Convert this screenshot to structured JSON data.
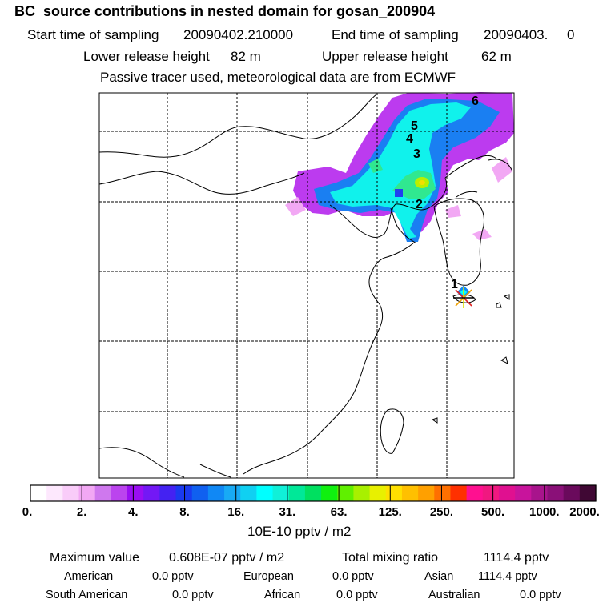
{
  "header": {
    "title": "BC  source contributions in nested domain for gosan_200904",
    "start_label": "Start time of sampling",
    "start_value": "20090402.210000",
    "end_label": "End time of sampling",
    "end_value": "20090403.     0",
    "lower_label": "Lower release height",
    "lower_value": "82 m",
    "upper_label": "Upper release height",
    "upper_value": "62 m",
    "tracer_note": "Passive tracer used, meteorological data are from ECMWF"
  },
  "map": {
    "markers": [
      "1",
      "2",
      "3",
      "4",
      "5",
      "6"
    ],
    "receptor_icon": "star-receptor-icon"
  },
  "colorbar": {
    "ticks": [
      "0.",
      "2.",
      "4.",
      "8.",
      "16.",
      "31.",
      "63.",
      "125.",
      "250.",
      "500.",
      "1000.",
      "2000."
    ],
    "unit": "10E-10 pptv / m2",
    "colors": [
      "#ffffff",
      "#fde8fd",
      "#f9ccf9",
      "#f2a8f4",
      "#cf78ee",
      "#bb44ee",
      "#9a0ef2",
      "#7318f5",
      "#4422f2",
      "#1a3af0",
      "#1060f0",
      "#1088f5",
      "#18aaf5",
      "#10d0f2",
      "#00ffff",
      "#10f0d8",
      "#00e898",
      "#00e060",
      "#10f010",
      "#60f000",
      "#a8f000",
      "#e8f000",
      "#ffe000",
      "#ffc000",
      "#ffa000",
      "#ff7000",
      "#ff3000",
      "#ff1090",
      "#f01880",
      "#e01090",
      "#c8149c",
      "#a8148c",
      "#8a1078",
      "#6a0a5c",
      "#400834"
    ]
  },
  "footer": {
    "max_label": "Maximum value",
    "max_value": "0.608E-07 pptv / m2",
    "total_label": "Total mixing ratio",
    "total_value": "1114.4 pptv",
    "regions": [
      {
        "name": "American",
        "value": "0.0 pptv"
      },
      {
        "name": "European",
        "value": "0.0 pptv"
      },
      {
        "name": "Asian",
        "value": "1114.4 pptv"
      },
      {
        "name": "South American",
        "value": "0.0 pptv"
      },
      {
        "name": "African",
        "value": "0.0 pptv"
      },
      {
        "name": "Australian",
        "value": "0.0 pptv"
      }
    ]
  }
}
